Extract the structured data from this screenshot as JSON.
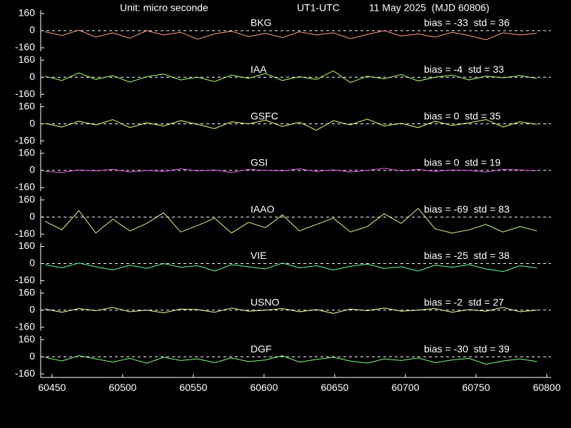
{
  "header": {
    "unit": "Unit: micro seconde",
    "quantity": "UT1-UTC",
    "date": "11 May 2025  (MJD 60806)"
  },
  "chart_data": [
    {
      "type": "line",
      "label": "BKG",
      "annotation": "bias = -33  std = 36",
      "color": "#ff9f7f",
      "x": [
        60445,
        60457,
        60469,
        60481,
        60493,
        60505,
        60517,
        60529,
        60541,
        60553,
        60565,
        60577,
        60589,
        60601,
        60613,
        60625,
        60637,
        60649,
        60661,
        60673,
        60685,
        60697,
        60709,
        60721,
        60733,
        60745,
        60757,
        60769,
        60781,
        60793
      ],
      "values": [
        -10,
        -45,
        5,
        -60,
        -20,
        -70,
        0,
        -40,
        -15,
        -80,
        -30,
        -5,
        -55,
        -25,
        -65,
        -10,
        -40,
        -20,
        -75,
        -35,
        0,
        -50,
        -30,
        -60,
        -15,
        -45,
        -85,
        -20,
        -40,
        -25
      ],
      "xlim": [
        60442,
        60803
      ],
      "ylim": [
        -160,
        160
      ],
      "yticks": [
        -160,
        0,
        160
      ],
      "zero_line": true
    },
    {
      "type": "line",
      "label": "IAA",
      "annotation": "bias = -4  std = 33",
      "color": "#adff5f",
      "x": [
        60445,
        60457,
        60469,
        60481,
        60493,
        60505,
        60517,
        60529,
        60541,
        60553,
        60565,
        60577,
        60589,
        60601,
        60613,
        60625,
        60637,
        60649,
        60661,
        60673,
        60685,
        60697,
        60709,
        60721,
        60733,
        60745,
        60757,
        60769,
        60781,
        60793
      ],
      "values": [
        10,
        -30,
        40,
        -20,
        15,
        -45,
        5,
        30,
        -25,
        0,
        -40,
        20,
        -10,
        35,
        -30,
        5,
        -20,
        60,
        -50,
        10,
        -15,
        25,
        -35,
        0,
        20,
        -25,
        10,
        -5,
        15,
        -10
      ],
      "xlim": [
        60442,
        60803
      ],
      "ylim": [
        -160,
        160
      ],
      "yticks": [
        -160,
        0,
        160
      ],
      "zero_line": true
    },
    {
      "type": "line",
      "label": "GSFC",
      "annotation": "bias = 0  std = 35",
      "color": "#ffff5f",
      "x": [
        60445,
        60457,
        60469,
        60481,
        60493,
        60505,
        60517,
        60529,
        60541,
        60553,
        60565,
        60577,
        60589,
        60601,
        60613,
        60625,
        60637,
        60649,
        60661,
        60673,
        60685,
        60697,
        60709,
        60721,
        60733,
        60745,
        60757,
        60769,
        60781,
        60793
      ],
      "values": [
        5,
        -30,
        25,
        -10,
        40,
        -35,
        10,
        -20,
        30,
        -5,
        -45,
        20,
        0,
        35,
        -25,
        15,
        -60,
        30,
        -10,
        45,
        -20,
        5,
        -35,
        25,
        -15,
        10,
        40,
        -30,
        20,
        -5
      ],
      "xlim": [
        60442,
        60803
      ],
      "ylim": [
        -160,
        160
      ],
      "yticks": [
        -160,
        0,
        160
      ],
      "zero_line": true
    },
    {
      "type": "line",
      "label": "GSI",
      "annotation": "bias = 0  std = 19",
      "color": "#e060e0",
      "x": [
        60445,
        60457,
        60469,
        60481,
        60493,
        60505,
        60517,
        60529,
        60541,
        60553,
        60565,
        60577,
        60589,
        60601,
        60613,
        60625,
        60637,
        60649,
        60661,
        60673,
        60685,
        60697,
        60709,
        60721,
        60733,
        60745,
        60757,
        60769,
        60781,
        60793
      ],
      "values": [
        -10,
        -20,
        5,
        -5,
        10,
        -15,
        0,
        -10,
        15,
        -5,
        5,
        -20,
        10,
        0,
        -5,
        15,
        -10,
        5,
        -15,
        0,
        20,
        -5,
        10,
        -10,
        5,
        0,
        -15,
        10,
        5,
        -5
      ],
      "xlim": [
        60442,
        60803
      ],
      "ylim": [
        -160,
        160
      ],
      "yticks": [
        -160,
        0,
        160
      ],
      "zero_line": true
    },
    {
      "type": "line",
      "label": "IAAO",
      "annotation": "bias = -69  std = 83",
      "color": "#cfff7f",
      "x": [
        60445,
        60457,
        60469,
        60481,
        60493,
        60505,
        60517,
        60529,
        60541,
        60553,
        60565,
        60577,
        60589,
        60601,
        60613,
        60625,
        60637,
        60649,
        60661,
        60673,
        60685,
        60697,
        60709,
        60721,
        60733,
        60745,
        60757,
        60769,
        60781,
        60793
      ],
      "values": [
        -40,
        -120,
        60,
        -150,
        -20,
        -130,
        -60,
        40,
        -140,
        -80,
        -10,
        -150,
        -50,
        -100,
        20,
        -130,
        -70,
        -10,
        -140,
        -90,
        30,
        -60,
        80,
        -110,
        -150,
        -120,
        -70,
        -140,
        -90,
        -130
      ],
      "xlim": [
        60442,
        60803
      ],
      "ylim": [
        -160,
        160
      ],
      "yticks": [
        -160,
        0,
        160
      ],
      "zero_line": true
    },
    {
      "type": "line",
      "label": "VIE",
      "annotation": "bias = -25  std = 38",
      "color": "#5fff9f",
      "x": [
        60445,
        60457,
        60469,
        60481,
        60493,
        60505,
        60517,
        60529,
        60541,
        60553,
        60565,
        60577,
        60589,
        60601,
        60613,
        60625,
        60637,
        60649,
        60661,
        60673,
        60685,
        60697,
        60709,
        60721,
        60733,
        60745,
        60757,
        60769,
        60781,
        60793
      ],
      "values": [
        -10,
        -40,
        5,
        -30,
        -60,
        -15,
        -45,
        0,
        -35,
        -20,
        -70,
        -10,
        -30,
        -50,
        5,
        -40,
        -20,
        -60,
        -25,
        -5,
        -45,
        -30,
        -70,
        -15,
        -35,
        -10,
        -50,
        -75,
        -20,
        -40
      ],
      "xlim": [
        60442,
        60803
      ],
      "ylim": [
        -160,
        160
      ],
      "yticks": [
        -160,
        0,
        160
      ],
      "zero_line": true
    },
    {
      "type": "line",
      "label": "USNO",
      "annotation": "bias = -2  std = 27",
      "color": "#ffff9f",
      "x": [
        60445,
        60457,
        60469,
        60481,
        60493,
        60505,
        60517,
        60529,
        60541,
        60553,
        60565,
        60577,
        60589,
        60601,
        60613,
        60625,
        60637,
        60649,
        60661,
        60673,
        60685,
        60697,
        60709,
        60721,
        60733,
        60745,
        60757,
        60769,
        60781,
        60793
      ],
      "values": [
        10,
        -20,
        15,
        -5,
        25,
        -15,
        0,
        -25,
        10,
        5,
        -20,
        20,
        -10,
        0,
        15,
        -15,
        5,
        -30,
        10,
        -5,
        20,
        -10,
        0,
        15,
        -20,
        5,
        -10,
        25,
        -15,
        0
      ],
      "xlim": [
        60442,
        60803
      ],
      "ylim": [
        -160,
        160
      ],
      "yticks": [
        -160,
        0,
        160
      ],
      "zero_line": true
    },
    {
      "type": "line",
      "label": "DGF",
      "annotation": "bias = -30  std = 39",
      "color": "#7fff7f",
      "x": [
        60445,
        60457,
        60469,
        60481,
        60493,
        60505,
        60517,
        60529,
        60541,
        60553,
        60565,
        60577,
        60589,
        60601,
        60613,
        60625,
        60637,
        60649,
        60661,
        60673,
        60685,
        60697,
        60709,
        60721,
        60733,
        60745,
        60757,
        60769,
        60781,
        60793
      ],
      "values": [
        -5,
        -40,
        10,
        -20,
        -50,
        -15,
        -60,
        -5,
        -35,
        -20,
        -55,
        -10,
        -45,
        -30,
        10,
        -50,
        -25,
        -5,
        -40,
        -60,
        -20,
        -35,
        -10,
        -55,
        -30,
        -15,
        -70,
        -40,
        -20,
        -45
      ],
      "xlim": [
        60442,
        60803
      ],
      "ylim": [
        -160,
        160
      ],
      "yticks": [
        -160,
        0,
        160
      ],
      "zero_line": true,
      "xticks": [
        60450,
        60500,
        60550,
        60600,
        60650,
        60700,
        60750,
        60800
      ]
    }
  ]
}
